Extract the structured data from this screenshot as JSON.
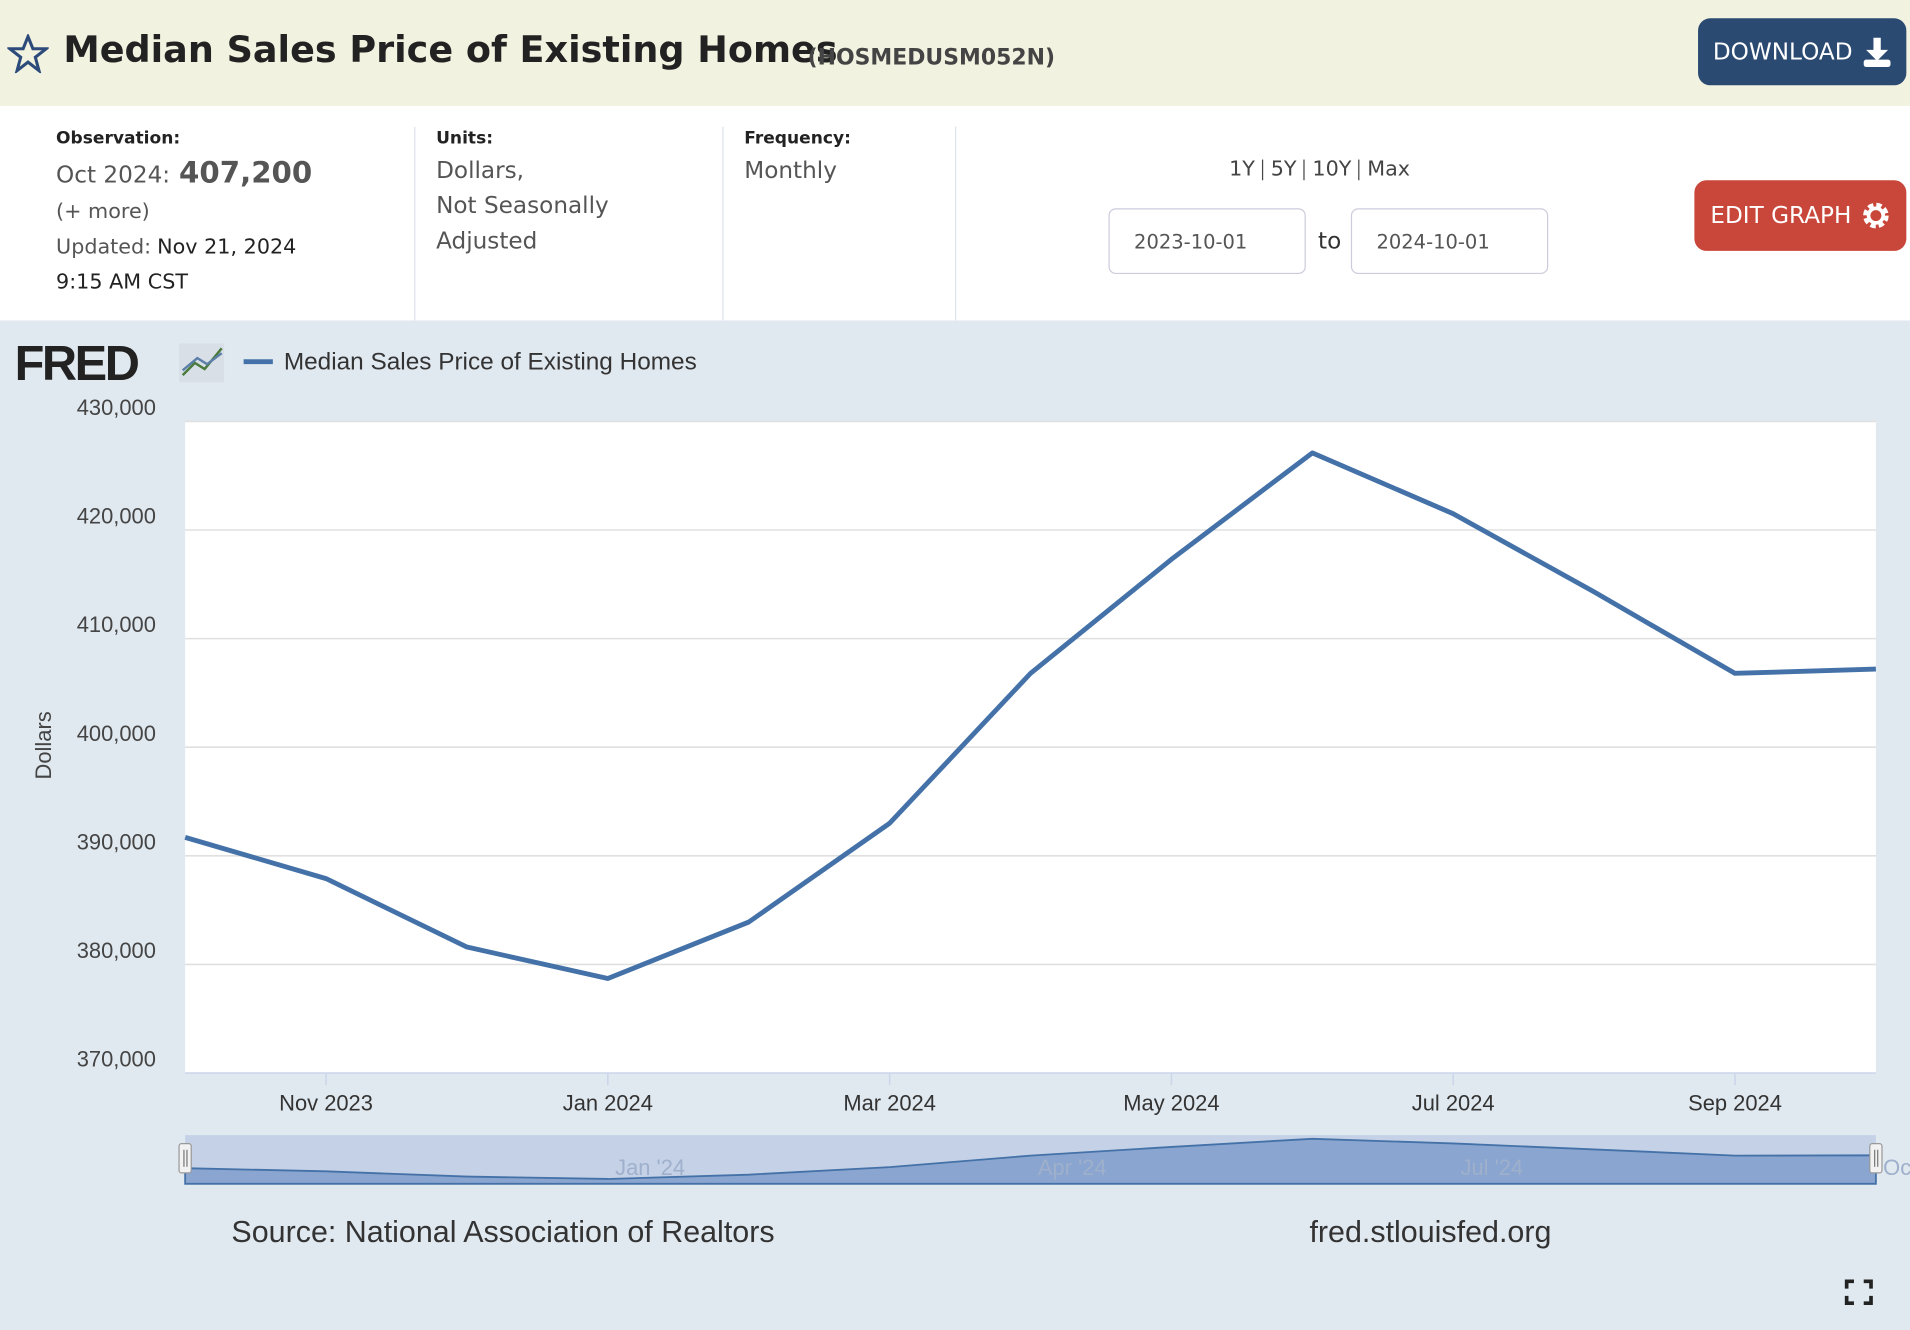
{
  "header": {
    "title": "Median Sales Price of Existing Homes",
    "series_id": "(HOSMEDUSM052N)",
    "download": "DOWNLOAD"
  },
  "info": {
    "observation_label": "Observation:",
    "observation_date": "Oct 2024:",
    "observation_value": "407,200",
    "more": "(+ more)",
    "updated_label": "Updated:",
    "updated_date": "Nov 21, 2024",
    "updated_time": "9:15 AM CST",
    "units_label": "Units:",
    "units": [
      "Dollars,",
      "Not Seasonally",
      "Adjusted"
    ],
    "frequency_label": "Frequency:",
    "frequency": "Monthly",
    "ranges": [
      "1Y",
      "5Y",
      "10Y",
      "Max"
    ],
    "start_date": "2023-10-01",
    "to": "to",
    "end_date": "2024-10-01",
    "edit_graph": "EDIT GRAPH"
  },
  "chart_data": {
    "type": "line",
    "logo": "FRED",
    "y_label": "Dollars",
    "categories": [
      null,
      "Nov 2023",
      null,
      "Jan 2024",
      null,
      "Mar 2024",
      null,
      "May 2024",
      null,
      "Jul 2024",
      null,
      "Sep 2024",
      null
    ],
    "series": [
      {
        "name": "Median Sales Price of Existing Homes",
        "color": "#4472a8",
        "values": [
          391700,
          387900,
          381600,
          378700,
          383900,
          393000,
          406800,
          417300,
          427100,
          421500,
          414300,
          406800,
          407200
        ]
      }
    ],
    "ylim": [
      370000,
      430000
    ],
    "yticks": [
      {
        "value": 370000,
        "label": "370,000"
      },
      {
        "value": 380000,
        "label": "380,000"
      },
      {
        "value": 390000,
        "label": "390,000"
      },
      {
        "value": 400000,
        "label": "400,000"
      },
      {
        "value": 410000,
        "label": "410,000"
      },
      {
        "value": 420000,
        "label": "420,000"
      },
      {
        "value": 430000,
        "label": "430,000"
      }
    ],
    "grid": true,
    "legend": "top-left",
    "navigator_labels": [
      "Jan '24",
      "Apr '24",
      "Jul '24",
      "Oc"
    ]
  },
  "footer": {
    "source": "Source: National Association of Realtors",
    "site": "fred.stlouisfed.org"
  }
}
